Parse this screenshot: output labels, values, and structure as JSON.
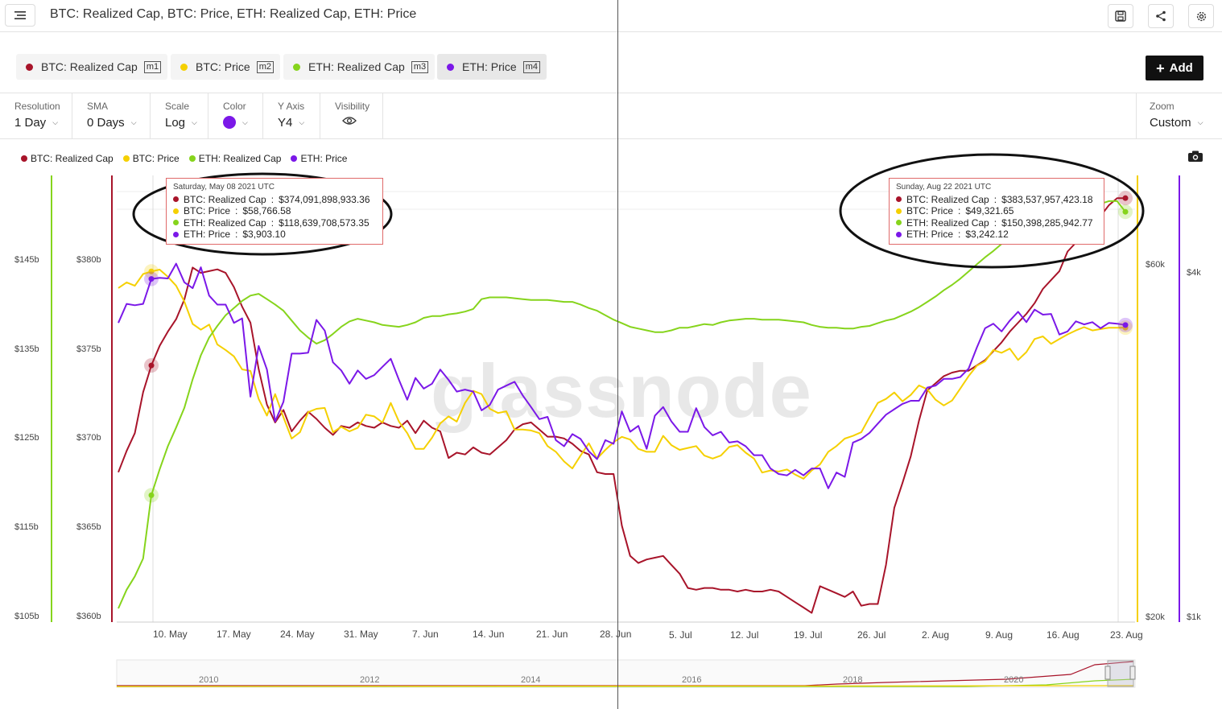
{
  "title": "BTC: Realized Cap, BTC: Price, ETH: Realized Cap, ETH: Price",
  "watermark": "glassnode",
  "metrics": [
    {
      "label": "BTC: Realized Cap",
      "code": "m1",
      "color": "#a8142a"
    },
    {
      "label": "BTC: Price",
      "code": "m2",
      "color": "#f5d000"
    },
    {
      "label": "ETH: Realized Cap",
      "code": "m3",
      "color": "#86d41c"
    },
    {
      "label": "ETH: Price",
      "code": "m4",
      "color": "#7b18e8"
    }
  ],
  "add_label": "Add",
  "toolbar": {
    "resolution": {
      "label": "Resolution",
      "value": "1 Day"
    },
    "sma": {
      "label": "SMA",
      "value": "0 Days"
    },
    "scale": {
      "label": "Scale",
      "value": "Log"
    },
    "color": {
      "label": "Color",
      "value": "#7b18e8"
    },
    "yaxis": {
      "label": "Y Axis",
      "value": "Y4"
    },
    "visibility": {
      "label": "Visibility"
    },
    "zoom": {
      "label": "Zoom",
      "value": "Custom"
    }
  },
  "tooltips": [
    {
      "date": "Saturday, May 08 2021 UTC",
      "rows": [
        {
          "name": "BTC: Realized Cap",
          "value": "$374,091,898,933.36"
        },
        {
          "name": "BTC: Price",
          "value": "$58,766.58"
        },
        {
          "name": "ETH: Realized Cap",
          "value": "$118,639,708,573.35"
        },
        {
          "name": "ETH: Price",
          "value": "$3,903.10"
        }
      ]
    },
    {
      "date": "Sunday, Aug 22 2021 UTC",
      "rows": [
        {
          "name": "BTC: Realized Cap",
          "value": "$383,537,957,423.18"
        },
        {
          "name": "BTC: Price",
          "value": "$49,321.65"
        },
        {
          "name": "ETH: Realized Cap",
          "value": "$150,398,285,942.77"
        },
        {
          "name": "ETH: Price",
          "value": "$3,242.12"
        }
      ]
    }
  ],
  "navigator_years": [
    "2010",
    "2012",
    "2014",
    "2016",
    "2018",
    "2020"
  ],
  "chart_data": {
    "type": "line",
    "x_tick_labels": [
      "10. May",
      "17. May",
      "24. May",
      "31. May",
      "7. Jun",
      "14. Jun",
      "21. Jun",
      "28. Jun",
      "5. Jul",
      "12. Jul",
      "19. Jul",
      "26. Jul",
      "2. Aug",
      "9. Aug",
      "16. Aug",
      "23. Aug"
    ],
    "x_range": [
      "2021-05-04",
      "2021-08-23"
    ],
    "y_axes": {
      "eth_realized_cap": {
        "ticks": [
          "$105b",
          "$115b",
          "$125b",
          "$135b",
          "$145b"
        ],
        "range": [
          105,
          150
        ]
      },
      "btc_realized_cap": {
        "ticks": [
          "$360b",
          "$365b",
          "$370b",
          "$375b",
          "$380b"
        ],
        "range": [
          360,
          385
        ]
      },
      "btc_price": {
        "ticks": [
          "$20k",
          "$60k"
        ],
        "scale": "log"
      },
      "eth_price": {
        "ticks": [
          "$1k",
          "$4k"
        ],
        "scale": "log"
      }
    },
    "grid": true,
    "legend_position": "top-left",
    "series": [
      {
        "name": "BTC: Realized Cap",
        "color": "#a8142a",
        "unit": "billion USD",
        "values": [
          368.1,
          369.3,
          370.3,
          372.6,
          374.1,
          375.2,
          376.0,
          376.7,
          377.8,
          379.6,
          379.3,
          379.4,
          379.5,
          379.3,
          378.5,
          377.4,
          376.5,
          373.9,
          371.9,
          370.9,
          371.6,
          370.4,
          371.0,
          371.5,
          371.1,
          370.6,
          370.2,
          370.7,
          370.6,
          370.9,
          370.7,
          370.6,
          370.9,
          370.7,
          370.6,
          371.0,
          370.3,
          371.0,
          370.6,
          370.4,
          368.9,
          369.2,
          369.1,
          369.5,
          369.2,
          369.1,
          369.5,
          369.9,
          370.5,
          370.8,
          370.9,
          370.5,
          370.1,
          370.1,
          370.0,
          369.7,
          369.3,
          369.1,
          368.1,
          368.0,
          368.0,
          365.1,
          363.4,
          363.0,
          363.2,
          363.3,
          363.4,
          362.9,
          362.4,
          361.6,
          361.5,
          361.6,
          361.6,
          361.5,
          361.5,
          361.4,
          361.5,
          361.4,
          361.4,
          361.5,
          361.4,
          361.1,
          360.8,
          360.5,
          360.2,
          361.7,
          361.5,
          361.3,
          361.1,
          361.4,
          360.6,
          360.7,
          360.7,
          362.9,
          366.1,
          367.5,
          369.0,
          371.0,
          372.7,
          373.1,
          373.5,
          373.7,
          373.8,
          373.8,
          374.1,
          374.4,
          374.9,
          375.4,
          376.0,
          376.5,
          377.0,
          377.6,
          378.4,
          378.9,
          379.4,
          380.5,
          381.0,
          381.4,
          381.9,
          382.5,
          383.1,
          383.5,
          383.5
        ]
      },
      {
        "name": "BTC: Price",
        "color": "#f5d000",
        "unit": "USD",
        "values": [
          55800,
          56800,
          56200,
          58300,
          58767,
          59100,
          57800,
          56200,
          53500,
          49900,
          49000,
          49800,
          46800,
          46000,
          45100,
          43300,
          43100,
          39500,
          37500,
          40100,
          37300,
          34900,
          35600,
          37900,
          38300,
          38400,
          35600,
          36200,
          35700,
          36100,
          37600,
          37400,
          36700,
          39000,
          36800,
          35500,
          33800,
          33800,
          35000,
          36600,
          37400,
          36800,
          39000,
          40500,
          40100,
          38300,
          37800,
          38000,
          35900,
          35900,
          35800,
          35500,
          34100,
          33500,
          32500,
          31800,
          33100,
          34400,
          32800,
          33700,
          34500,
          35100,
          34800,
          33800,
          33500,
          33500,
          35200,
          34200,
          33700,
          33900,
          34100,
          33100,
          32800,
          33100,
          34000,
          34200,
          33400,
          32800,
          31400,
          31600,
          31500,
          31700,
          31200,
          30800,
          31600,
          32200,
          33500,
          34100,
          34900,
          35200,
          35600,
          37300,
          39000,
          39500,
          40300,
          39200,
          40000,
          41200,
          40700,
          39400,
          38700,
          39300,
          40800,
          42400,
          43800,
          44400,
          46000,
          45600,
          46200,
          44600,
          45700,
          47600,
          48000,
          46900,
          47600,
          48300,
          48900,
          49400,
          48900,
          49100,
          49300,
          49300,
          49322
        ]
      },
      {
        "name": "ETH: Realized Cap",
        "color": "#86d41c",
        "unit": "billion USD",
        "values": [
          105.9,
          108.0,
          109.5,
          111.5,
          118.6,
          121.5,
          124.1,
          126.2,
          128.4,
          131.6,
          134.3,
          136.3,
          137.6,
          138.8,
          139.6,
          140.4,
          141.0,
          141.2,
          140.6,
          140.0,
          139.3,
          138.2,
          137.1,
          136.3,
          135.6,
          136.0,
          136.7,
          137.5,
          138.1,
          138.4,
          138.2,
          138.0,
          137.7,
          137.6,
          137.5,
          137.7,
          138.0,
          138.5,
          138.7,
          138.7,
          138.9,
          139.0,
          139.2,
          139.5,
          140.6,
          140.8,
          140.8,
          140.8,
          140.7,
          140.6,
          140.5,
          140.5,
          140.5,
          140.4,
          140.3,
          140.3,
          140.0,
          139.6,
          139.3,
          138.8,
          138.3,
          137.9,
          137.5,
          137.3,
          137.1,
          136.9,
          136.9,
          137.1,
          137.4,
          137.4,
          137.6,
          137.8,
          137.7,
          138.0,
          138.2,
          138.3,
          138.4,
          138.4,
          138.3,
          138.3,
          138.3,
          138.2,
          138.1,
          138.0,
          137.7,
          137.5,
          137.4,
          137.4,
          137.3,
          137.3,
          137.5,
          137.6,
          137.9,
          138.2,
          138.4,
          138.8,
          139.2,
          139.7,
          140.3,
          140.9,
          141.6,
          142.2,
          142.9,
          143.7,
          144.5,
          145.3,
          146.0,
          146.8,
          147.3,
          147.7,
          148.2,
          148.8,
          149.2,
          149.6,
          149.9,
          150.4,
          150.7,
          150.9,
          151.0,
          151.3,
          151.6,
          151.6,
          150.4
        ]
      },
      {
        "name": "ETH: Price",
        "color": "#7b18e8",
        "unit": "USD",
        "values": [
          3270,
          3530,
          3510,
          3530,
          3903,
          3920,
          3910,
          4150,
          3850,
          3760,
          4090,
          3650,
          3520,
          3520,
          3270,
          3330,
          2430,
          2980,
          2710,
          2200,
          2380,
          2890,
          2890,
          2900,
          3310,
          3170,
          2790,
          2700,
          2560,
          2700,
          2610,
          2650,
          2740,
          2830,
          2600,
          2400,
          2620,
          2510,
          2560,
          2710,
          2600,
          2480,
          2500,
          2480,
          2300,
          2350,
          2500,
          2540,
          2580,
          2440,
          2330,
          2220,
          2240,
          2040,
          1990,
          2090,
          2050,
          1950,
          1890,
          2040,
          2010,
          2290,
          2110,
          2160,
          1970,
          2250,
          2330,
          2200,
          2110,
          2110,
          2320,
          2150,
          2080,
          2110,
          2020,
          2030,
          1990,
          1920,
          1920,
          1820,
          1780,
          1770,
          1810,
          1770,
          1820,
          1820,
          1680,
          1790,
          1760,
          2020,
          2050,
          2100,
          2180,
          2260,
          2310,
          2360,
          2390,
          2390,
          2520,
          2540,
          2610,
          2610,
          2630,
          2720,
          2960,
          3200,
          3260,
          3160,
          3300,
          3420,
          3280,
          3450,
          3380,
          3390,
          3120,
          3160,
          3290,
          3250,
          3280,
          3200,
          3270,
          3260,
          3242
        ]
      }
    ]
  }
}
